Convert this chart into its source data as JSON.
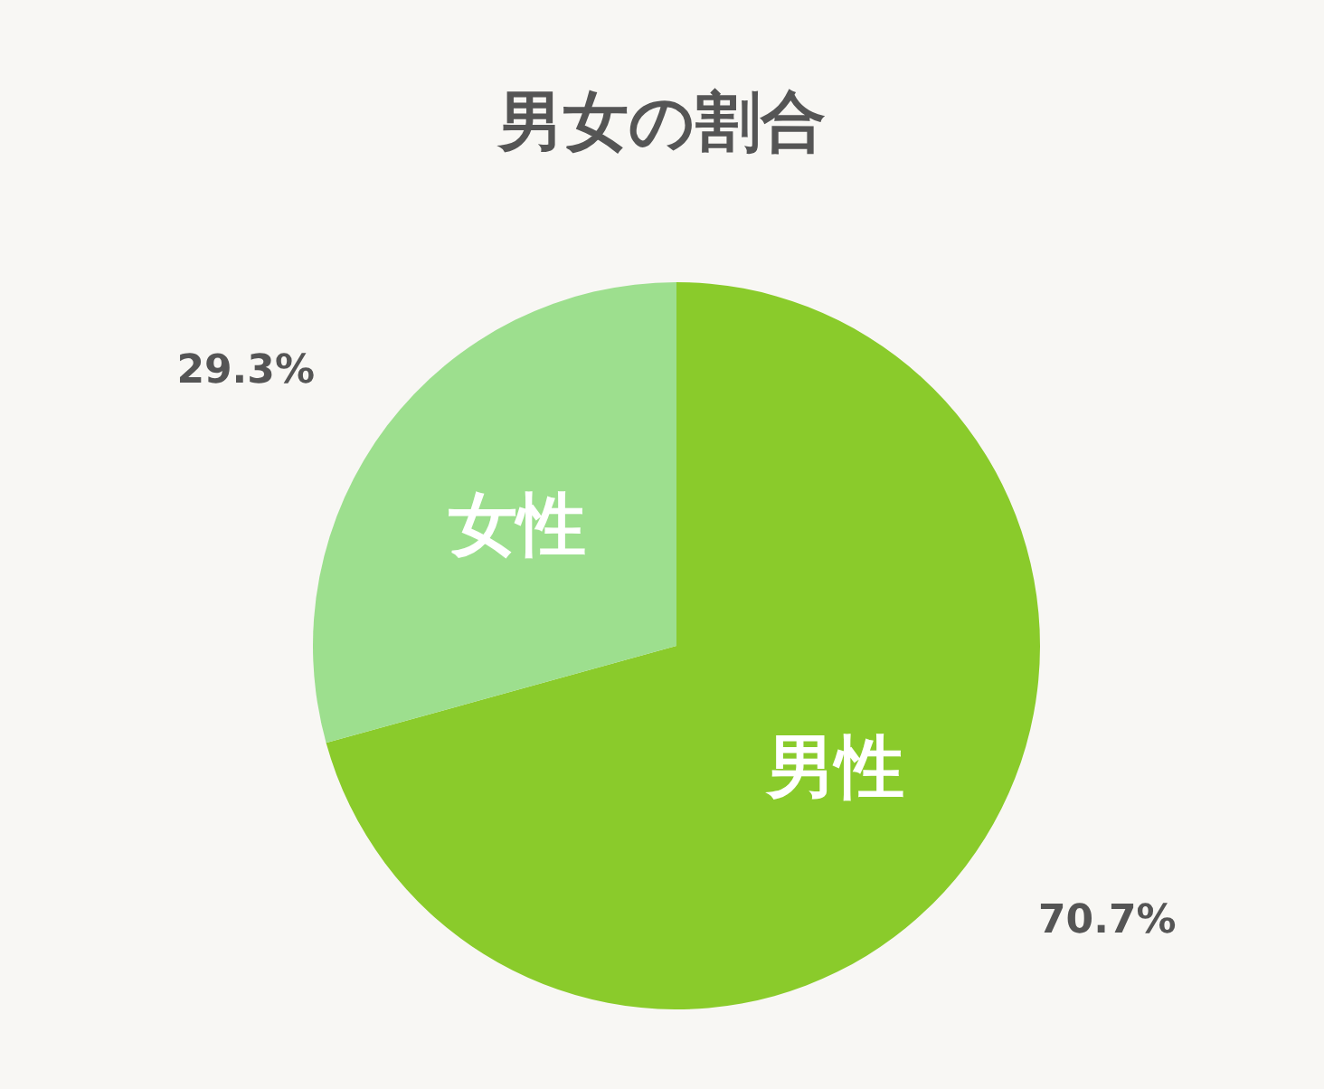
{
  "chart_data": {
    "type": "pie",
    "title": "男女の割合",
    "categories": [
      "男性",
      "女性"
    ],
    "values": [
      70.7,
      29.3
    ],
    "colors": [
      "#8acb2b",
      "#9ddf8e"
    ],
    "value_labels": [
      "70.7%",
      "29.3%"
    ],
    "legend": false
  }
}
